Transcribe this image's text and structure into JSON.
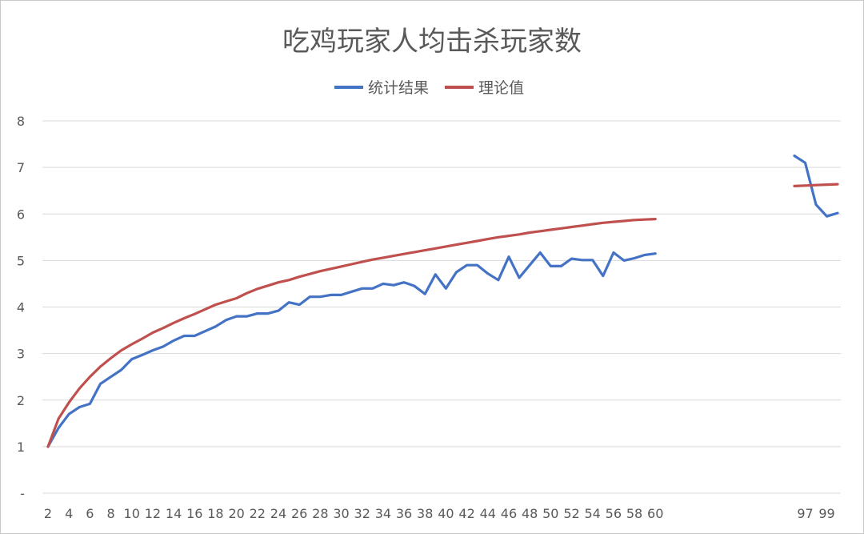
{
  "chart_data": {
    "type": "line",
    "title": "吃鸡玩家人均击杀玩家数",
    "xlabel": "",
    "ylabel": "",
    "ylim": [
      0,
      8
    ],
    "y_ticks": [
      "-",
      "1",
      "2",
      "3",
      "4",
      "5",
      "6",
      "7",
      "8"
    ],
    "x_ticks": [
      "2",
      "4",
      "6",
      "8",
      "10",
      "12",
      "14",
      "16",
      "18",
      "20",
      "22",
      "24",
      "26",
      "28",
      "30",
      "32",
      "34",
      "36",
      "38",
      "40",
      "42",
      "44",
      "46",
      "48",
      "50",
      "52",
      "54",
      "56",
      "58",
      "60",
      "97",
      "99"
    ],
    "grid": true,
    "legend_position": "top",
    "colors": {
      "统计结果": "#4472c4",
      "理论值": "#c0504d"
    },
    "x": [
      2,
      3,
      4,
      5,
      6,
      7,
      8,
      9,
      10,
      11,
      12,
      13,
      14,
      15,
      16,
      17,
      18,
      19,
      20,
      21,
      22,
      23,
      24,
      25,
      26,
      27,
      28,
      29,
      30,
      31,
      32,
      33,
      34,
      35,
      36,
      37,
      38,
      39,
      40,
      41,
      42,
      43,
      44,
      45,
      46,
      47,
      48,
      49,
      50,
      51,
      52,
      53,
      54,
      55,
      56,
      57,
      58,
      59,
      60,
      96,
      97,
      98,
      99,
      100
    ],
    "series": [
      {
        "name": "统计结果",
        "values": [
          1.0,
          1.4,
          1.7,
          1.85,
          1.92,
          2.35,
          2.5,
          2.65,
          2.88,
          2.97,
          3.07,
          3.15,
          3.28,
          3.38,
          3.38,
          3.48,
          3.58,
          3.72,
          3.8,
          3.8,
          3.86,
          3.86,
          3.92,
          4.1,
          4.05,
          4.22,
          4.22,
          4.26,
          4.26,
          4.33,
          4.4,
          4.4,
          4.5,
          4.47,
          4.53,
          4.45,
          4.28,
          4.7,
          4.4,
          4.75,
          4.9,
          4.9,
          4.72,
          4.58,
          5.08,
          4.63,
          4.9,
          5.17,
          4.88,
          4.88,
          5.04,
          5.01,
          5.01,
          4.67,
          5.17,
          5.0,
          5.05,
          5.12,
          5.15,
          7.25,
          7.1,
          6.2,
          5.95,
          6.02
        ]
      },
      {
        "name": "理论值",
        "values": [
          1.0,
          1.6,
          1.95,
          2.25,
          2.5,
          2.72,
          2.9,
          3.07,
          3.2,
          3.32,
          3.45,
          3.55,
          3.66,
          3.76,
          3.85,
          3.95,
          4.05,
          4.12,
          4.19,
          4.3,
          4.39,
          4.46,
          4.53,
          4.58,
          4.65,
          4.71,
          4.77,
          4.82,
          4.87,
          4.92,
          4.97,
          5.02,
          5.06,
          5.1,
          5.14,
          5.18,
          5.22,
          5.26,
          5.3,
          5.34,
          5.38,
          5.42,
          5.46,
          5.5,
          5.53,
          5.56,
          5.6,
          5.63,
          5.66,
          5.69,
          5.72,
          5.75,
          5.78,
          5.81,
          5.83,
          5.85,
          5.87,
          5.88,
          5.89,
          6.6,
          6.61,
          6.62,
          6.63,
          6.64
        ]
      }
    ]
  }
}
